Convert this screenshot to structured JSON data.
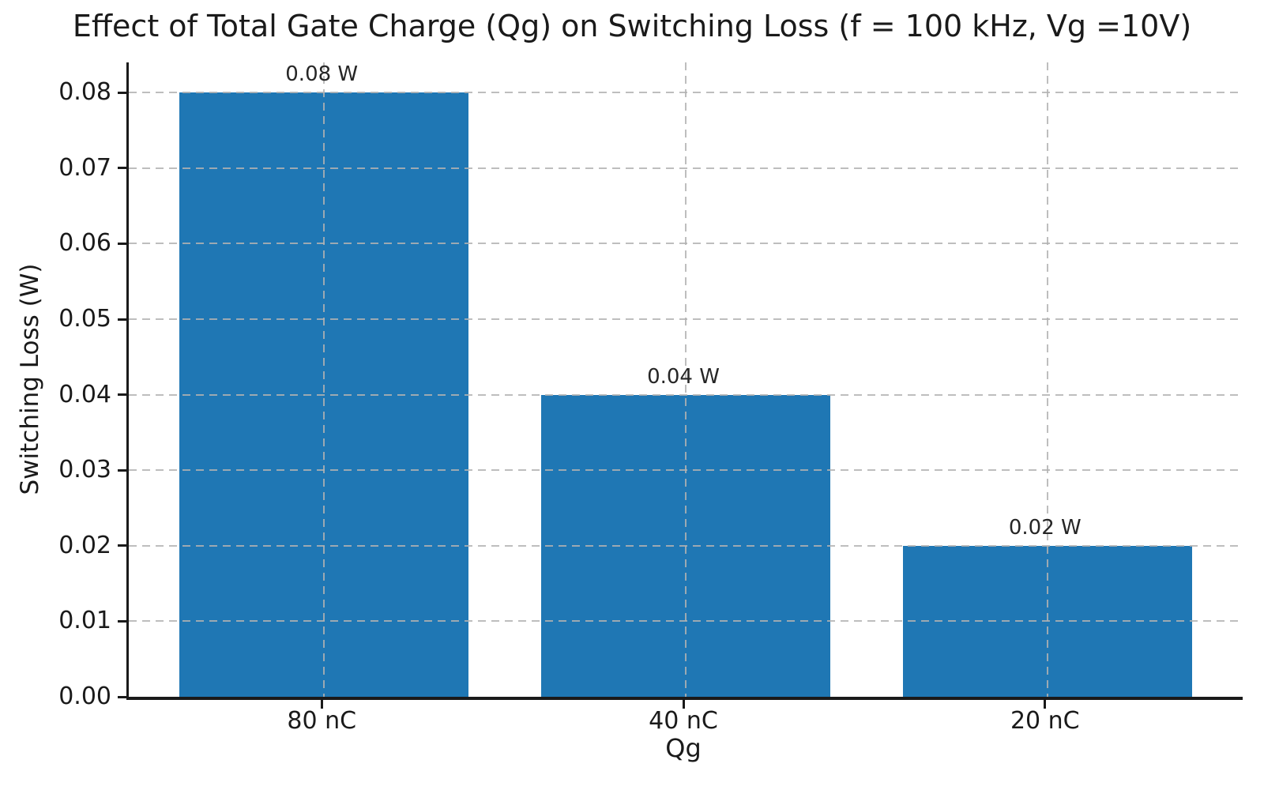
{
  "chart_data": {
    "type": "bar",
    "title": "Effect of Total Gate Charge (Qg) on Switching Loss (f = 100 kHz, Vg =10V)",
    "xlabel": "Qg",
    "ylabel": "Switching Loss (W)",
    "categories": [
      "80 nC",
      "40 nC",
      "20 nC"
    ],
    "values": [
      0.08,
      0.04,
      0.02
    ],
    "bar_labels": [
      "0.08 W",
      "0.04 W",
      "0.02 W"
    ],
    "bar_color": "#1f77b4",
    "ylim": [
      0,
      0.084
    ],
    "yticks": [
      0,
      0.01,
      0.02,
      0.03,
      0.04,
      0.05,
      0.06,
      0.07,
      0.08
    ],
    "ytick_labels": [
      "0.00",
      "0.01",
      "0.02",
      "0.03",
      "0.04",
      "0.05",
      "0.06",
      "0.07",
      "0.08"
    ],
    "grid": {
      "horizontal": true,
      "vertical": true,
      "style": "dashed",
      "color": "#c8c8c8",
      "drawn_over_bars": true
    },
    "legend_position": "none"
  }
}
